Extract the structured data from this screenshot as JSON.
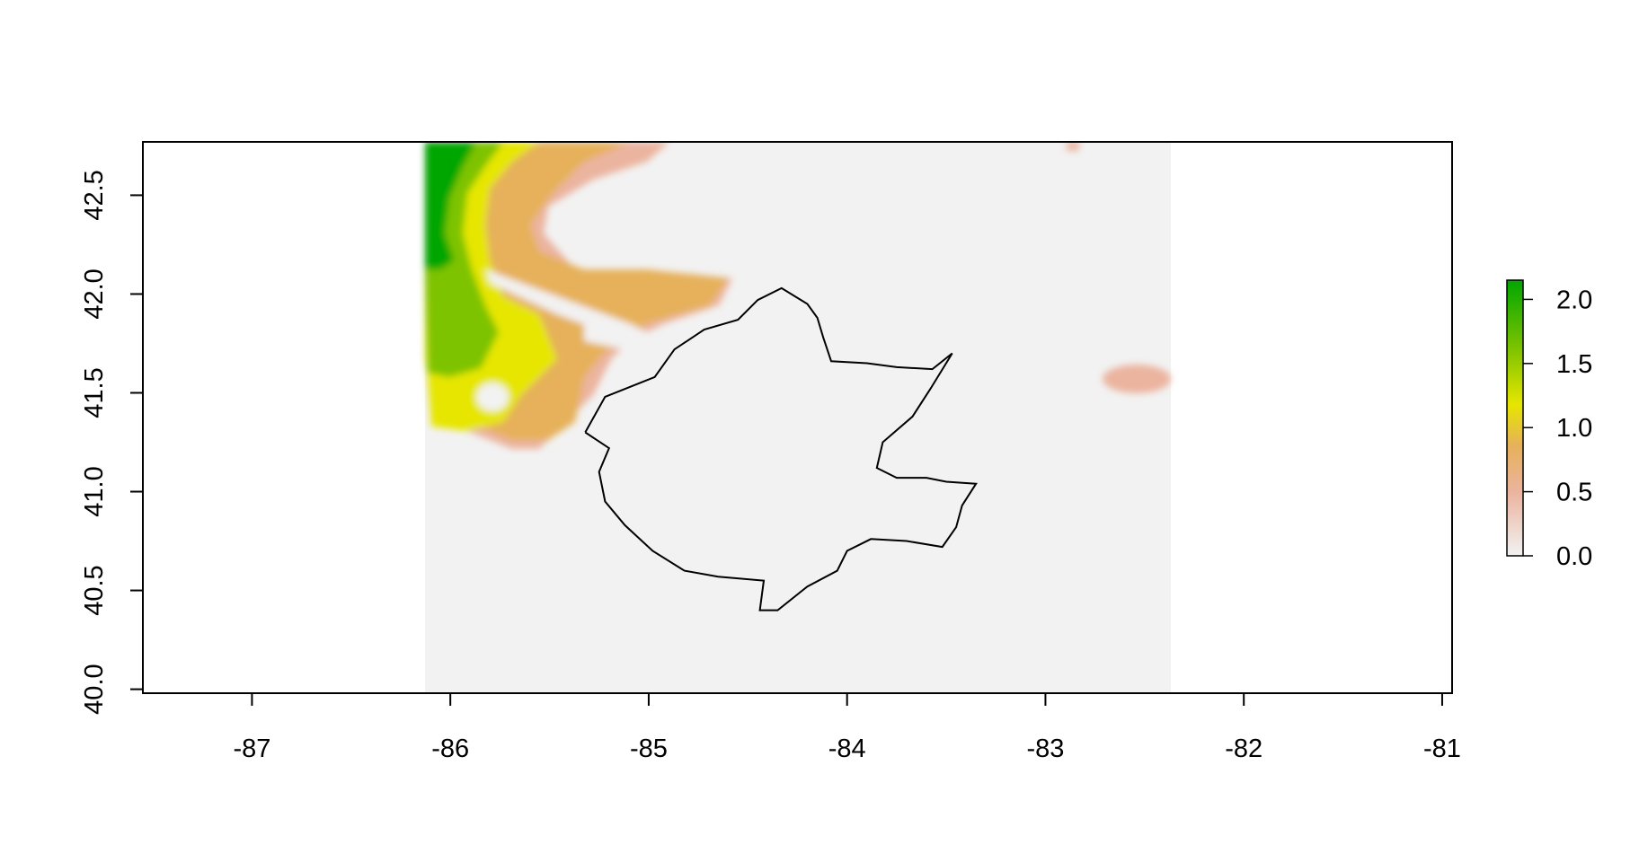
{
  "map": {
    "x_range": [
      -87.55,
      -80.95
    ],
    "y_range": [
      39.98,
      42.77
    ],
    "x_ticks": [
      "-87",
      "-86",
      "-85",
      "-84",
      "-83",
      "-82",
      "-81"
    ],
    "y_ticks": [
      "40.0",
      "40.5",
      "41.0",
      "41.5",
      "42.0",
      "42.5"
    ],
    "legend": {
      "range": [
        0,
        2.15
      ],
      "ticks": [
        "0.0",
        "0.5",
        "1.0",
        "1.5",
        "2.0"
      ],
      "colors": [
        "#f2f2f2",
        "#ebb49f",
        "#e6b15a",
        "#e6e600",
        "#7ec300",
        "#00a600"
      ]
    },
    "raster": {
      "background_color": "#f2f2f2",
      "extent": {
        "lon_min": -86.12,
        "lon_max": -82.37,
        "lat_min": 40.05,
        "lat_max": 42.77
      }
    },
    "watershed_outline": [
      [
        -85.32,
        41.3
      ],
      [
        -85.22,
        41.48
      ],
      [
        -84.97,
        41.58
      ],
      [
        -84.87,
        41.72
      ],
      [
        -84.72,
        41.82
      ],
      [
        -84.55,
        41.87
      ],
      [
        -84.45,
        41.97
      ],
      [
        -84.33,
        42.03
      ],
      [
        -84.2,
        41.95
      ],
      [
        -84.15,
        41.88
      ],
      [
        -84.12,
        41.78
      ],
      [
        -84.08,
        41.66
      ],
      [
        -83.9,
        41.65
      ],
      [
        -83.75,
        41.63
      ],
      [
        -83.57,
        41.62
      ],
      [
        -83.47,
        41.7
      ],
      [
        -83.58,
        41.52
      ],
      [
        -83.67,
        41.38
      ],
      [
        -83.82,
        41.25
      ],
      [
        -83.85,
        41.12
      ],
      [
        -83.75,
        41.07
      ],
      [
        -83.6,
        41.07
      ],
      [
        -83.5,
        41.05
      ],
      [
        -83.35,
        41.04
      ],
      [
        -83.42,
        40.93
      ],
      [
        -83.45,
        40.82
      ],
      [
        -83.52,
        40.72
      ],
      [
        -83.7,
        40.75
      ],
      [
        -83.88,
        40.76
      ],
      [
        -84.0,
        40.7
      ],
      [
        -84.05,
        40.6
      ],
      [
        -84.2,
        40.52
      ],
      [
        -84.35,
        40.4
      ],
      [
        -84.44,
        40.4
      ],
      [
        -84.42,
        40.55
      ],
      [
        -84.65,
        40.57
      ],
      [
        -84.82,
        40.6
      ],
      [
        -84.98,
        40.7
      ],
      [
        -85.12,
        40.83
      ],
      [
        -85.22,
        40.95
      ],
      [
        -85.25,
        41.1
      ],
      [
        -85.2,
        41.22
      ],
      [
        -85.32,
        41.3
      ]
    ]
  }
}
